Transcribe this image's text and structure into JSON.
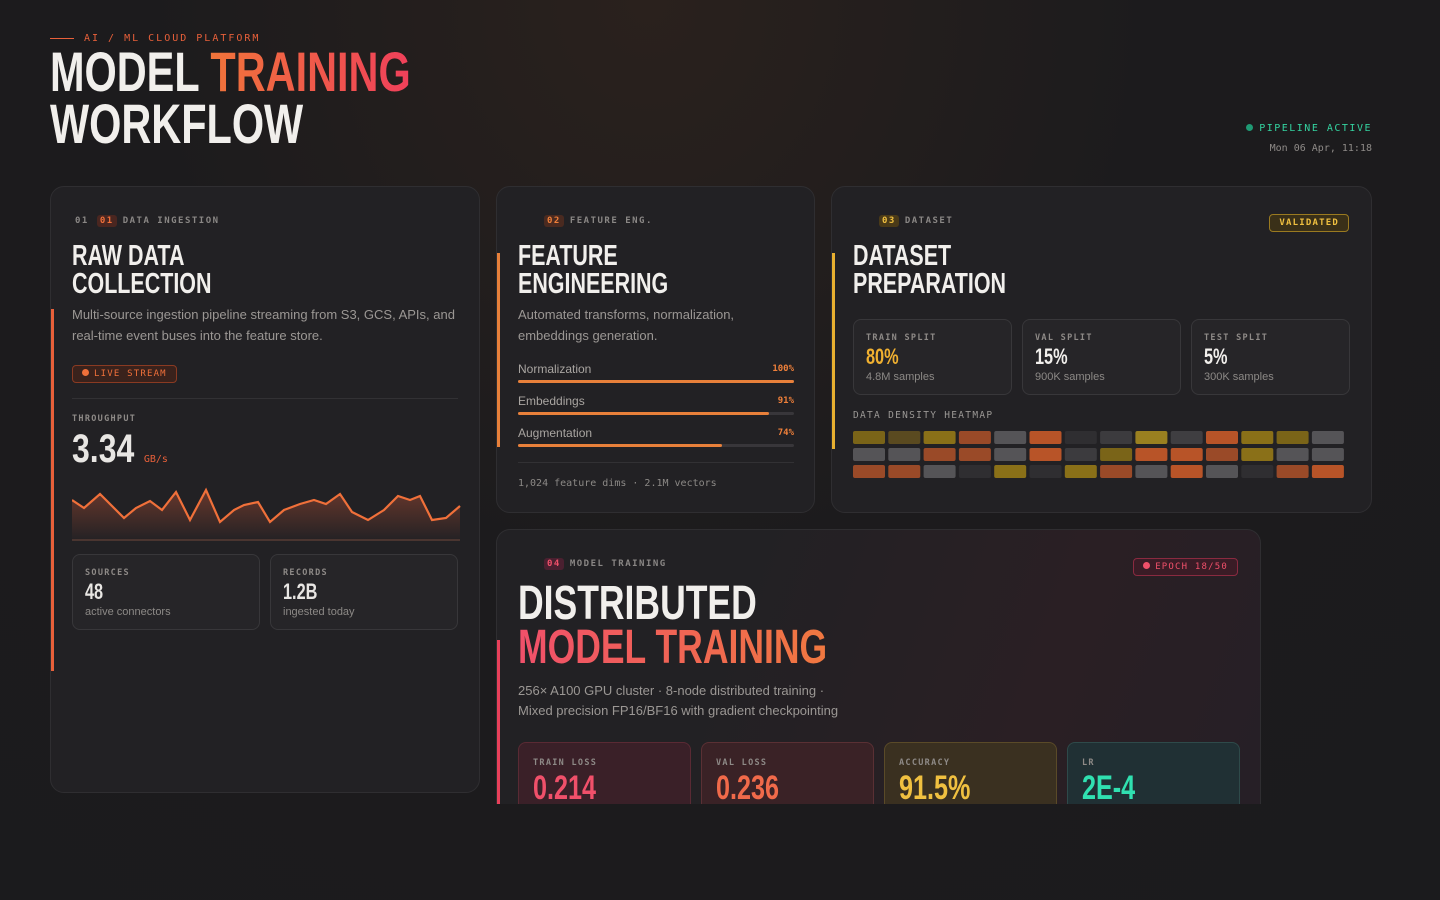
{
  "header": {
    "eyebrow": "AI / ML CLOUD PLATFORM",
    "title_word_1": "MODEL",
    "title_word_2": "TRAINING",
    "title_line_2": "WORKFLOW",
    "status": "PIPELINE ACTIVE",
    "datetime": "Mon 06 Apr, 11:18"
  },
  "ingestion": {
    "index": "01",
    "badge": "01",
    "label": "DATA INGESTION",
    "title": [
      "RAW DATA",
      "COLLECTION"
    ],
    "description": "Multi-source ingestion pipeline streaming from S3, GCS, APIs, and real-time event buses into the feature store.",
    "tag": "LIVE STREAM",
    "metric_label": "THROUGHPUT",
    "metric_value": "3.34",
    "metric_unit": "GB/s",
    "stats": [
      {
        "label": "SOURCES",
        "value": "48",
        "note": "active connectors"
      },
      {
        "label": "RECORDS",
        "value": "1.2B",
        "note": "ingested today"
      }
    ]
  },
  "features": {
    "badge": "02",
    "label": "FEATURE ENG.",
    "title": [
      "FEATURE",
      "ENGINEERING"
    ],
    "description": "Automated transforms, normalization, embeddings generation.",
    "bars": [
      {
        "name": "Normalization",
        "value": 100,
        "label": "100%"
      },
      {
        "name": "Embeddings",
        "value": 91,
        "label": "91%"
      },
      {
        "name": "Augmentation",
        "value": 74,
        "label": "74%"
      }
    ],
    "footer": "1,024 feature dims · 2.1M vectors"
  },
  "dataset": {
    "badge": "03",
    "label": "DATASET",
    "tag": "VALIDATED",
    "title": [
      "DATASET",
      "PREPARATION"
    ],
    "splits": [
      {
        "label": "TRAIN SPLIT",
        "value": "80%",
        "note": "4.8M samples"
      },
      {
        "label": "VAL SPLIT",
        "value": "15%",
        "note": "900K samples"
      },
      {
        "label": "TEST SPLIT",
        "value": "5%",
        "note": "300K samples"
      }
    ],
    "heatmap_label": "DATA DENSITY HEATMAP"
  },
  "training": {
    "badge": "04",
    "label": "MODEL TRAINING",
    "tag": "EPOCH 18/50",
    "title": [
      "DISTRIBUTED",
      "MODEL TRAINING"
    ],
    "description": [
      "256× A100 GPU cluster · 8-node distributed training ·",
      "Mixed precision FP16/BF16 with gradient checkpointing"
    ],
    "metrics": [
      {
        "label": "TRAIN LOSS",
        "value": "0.214"
      },
      {
        "label": "VAL LOSS",
        "value": "0.236"
      },
      {
        "label": "ACCURACY",
        "value": "91.5%"
      },
      {
        "label": "LR",
        "value": "2E-4"
      }
    ]
  }
}
